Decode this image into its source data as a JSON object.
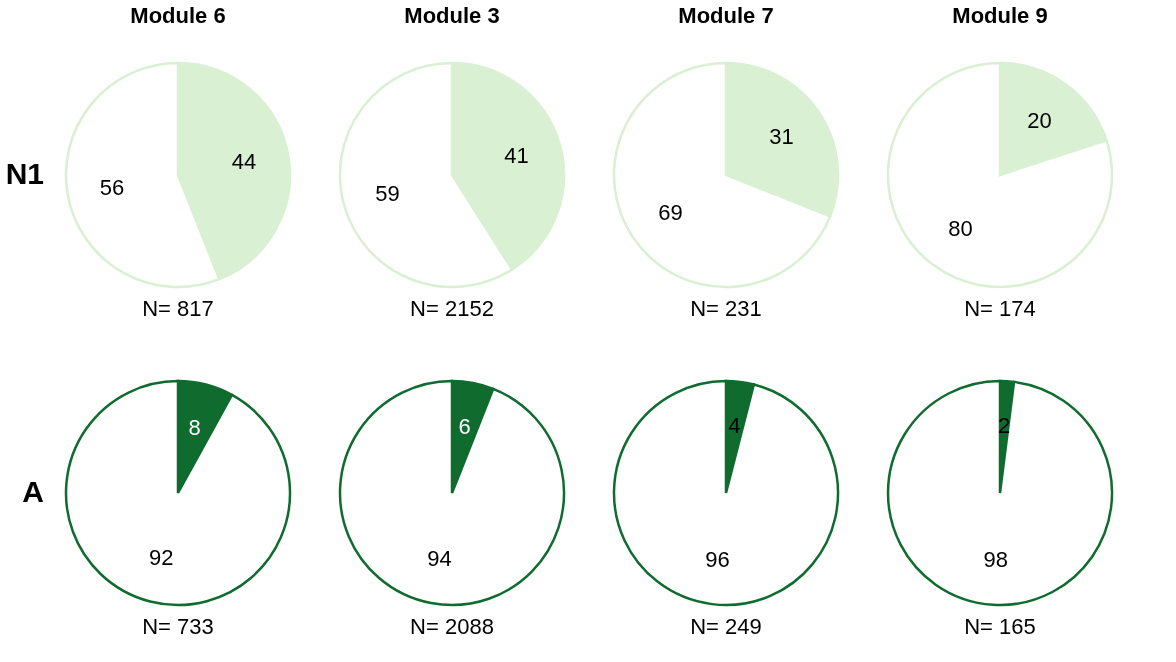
{
  "chart_data": [
    {
      "type": "pie",
      "title": "Module 6",
      "ylabel": "N1",
      "xlabel": "N= 817",
      "categories": [
        null,
        null
      ],
      "values": [
        44,
        56
      ],
      "colors": [
        "#d9f0d3",
        "#ffffff"
      ],
      "data_labels": true
    },
    {
      "type": "pie",
      "title": "Module 3",
      "xlabel": "N= 2152",
      "categories": [
        null,
        null
      ],
      "values": [
        41,
        59
      ],
      "colors": [
        "#d9f0d3",
        "#ffffff"
      ],
      "data_labels": true
    },
    {
      "type": "pie",
      "title": "Module 7",
      "xlabel": "N= 231",
      "categories": [
        null,
        null
      ],
      "values": [
        31,
        69
      ],
      "colors": [
        "#d9f0d3",
        "#ffffff"
      ],
      "data_labels": true
    },
    {
      "type": "pie",
      "title": "Module 9",
      "xlabel": "N= 174",
      "categories": [
        null,
        null
      ],
      "values": [
        20,
        80
      ],
      "colors": [
        "#d9f0d3",
        "#ffffff"
      ],
      "data_labels": true
    },
    {
      "type": "pie",
      "ylabel": "A",
      "xlabel": "N= 733",
      "categories": [
        null,
        null
      ],
      "values": [
        8,
        92
      ],
      "colors": [
        "#0f6b2e",
        "#ffffff"
      ],
      "data_labels": true
    },
    {
      "type": "pie",
      "xlabel": "N= 2088",
      "categories": [
        null,
        null
      ],
      "values": [
        6,
        94
      ],
      "colors": [
        "#0f6b2e",
        "#ffffff"
      ],
      "data_labels": true
    },
    {
      "type": "pie",
      "xlabel": "N= 249",
      "categories": [
        null,
        null
      ],
      "values": [
        4,
        96
      ],
      "colors": [
        "#0f6b2e",
        "#ffffff"
      ],
      "data_labels": true
    },
    {
      "type": "pie",
      "xlabel": "N= 165",
      "categories": [
        null,
        null
      ],
      "values": [
        2,
        98
      ],
      "colors": [
        "#0f6b2e",
        "#ffffff"
      ],
      "data_labels": true
    }
  ]
}
